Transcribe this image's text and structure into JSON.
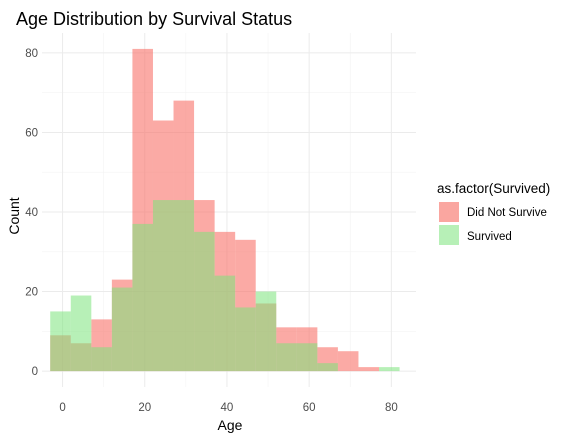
{
  "chart_data": {
    "type": "histogram",
    "title": "Age Distribution by Survival Status",
    "xlabel": "Age",
    "ylabel": "Count",
    "xlim": [
      -5,
      86
    ],
    "ylim": [
      -4,
      85
    ],
    "x_ticks": [
      0,
      20,
      40,
      60,
      80
    ],
    "y_ticks": [
      0,
      20,
      40,
      60,
      80
    ],
    "grid": true,
    "bin_width": 5,
    "bin_starts": [
      -3,
      2,
      7,
      12,
      17,
      22,
      27,
      32,
      37,
      42,
      47,
      52,
      57,
      62,
      67,
      72,
      77
    ],
    "legend": {
      "title": "as.factor(Survived)",
      "position": "right"
    },
    "series": [
      {
        "name": "Did Not Survive",
        "color": "#F8766D",
        "values": [
          9,
          7,
          13,
          23,
          81,
          63,
          68,
          43,
          35,
          33,
          17,
          11,
          11,
          6,
          5,
          1,
          0
        ]
      },
      {
        "name": "Survived",
        "color": "#7CE37C",
        "values": [
          15,
          19,
          6,
          21,
          37,
          43,
          43,
          35,
          24,
          16,
          20,
          7,
          7,
          2,
          0,
          0,
          1
        ]
      }
    ]
  }
}
